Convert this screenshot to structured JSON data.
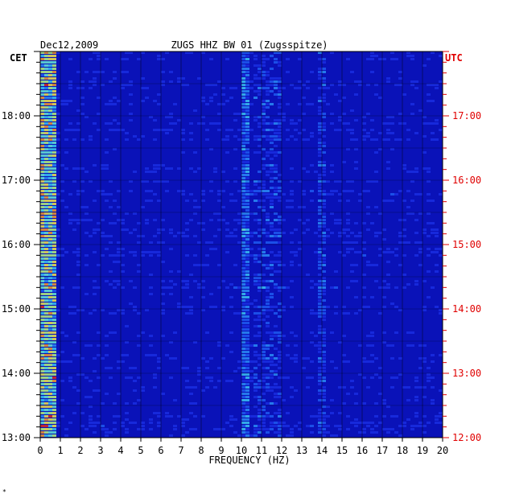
{
  "chart_data": {
    "type": "heatmap",
    "title_left": "Dec12,2009",
    "title_center": "ZUGS HHZ BW 01 (Zugsspitze)",
    "left_axis_label": "CET",
    "right_axis_label": "UTC",
    "xlabel": "FREQUENCY (HZ)",
    "x_range": [
      0,
      20
    ],
    "x_ticks": [
      "0",
      "1",
      "2",
      "3",
      "4",
      "5",
      "6",
      "7",
      "8",
      "9",
      "10",
      "11",
      "12",
      "13",
      "14",
      "15",
      "16",
      "17",
      "18",
      "19",
      "20"
    ],
    "y_range_hours_cet": [
      13,
      19
    ],
    "left_ticks": [
      {
        "hour": 18,
        "label": "18:00"
      },
      {
        "hour": 17,
        "label": "17:00"
      },
      {
        "hour": 16,
        "label": "16:00"
      },
      {
        "hour": 15,
        "label": "15:00"
      },
      {
        "hour": 14,
        "label": "14:00"
      },
      {
        "hour": 13,
        "label": "13:00"
      }
    ],
    "right_ticks": [
      {
        "hour": 18,
        "label": "17:00"
      },
      {
        "hour": 17,
        "label": "16:00"
      },
      {
        "hour": 16,
        "label": "15:00"
      },
      {
        "hour": 15,
        "label": "14:00"
      },
      {
        "hour": 14,
        "label": "13:00"
      },
      {
        "hour": 13,
        "label": "12:00"
      }
    ],
    "colors": {
      "background": "#0a12b8",
      "right_axis": "#e00000",
      "text": "#000000"
    },
    "grid": true
  },
  "corner_mark": "*"
}
